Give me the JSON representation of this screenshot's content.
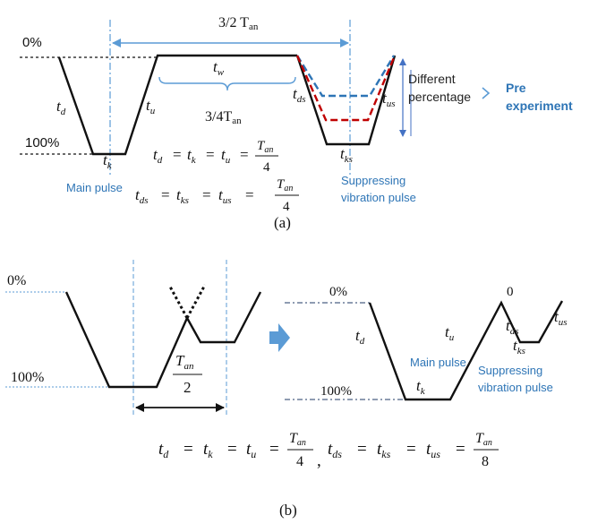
{
  "colors": {
    "black": "#111111",
    "blue_label": "#2e75b6",
    "arrow_blue": "#5b9bd5",
    "dash_blue": "#2e75b6",
    "dash_red": "#c00000",
    "thin_blue": "#4472c4"
  },
  "icons": {
    "pre_experiment_arrow": "chevron-right-icon",
    "transition_arrow": "block-right-arrow-icon"
  },
  "panel_a": {
    "caption": "(a)",
    "levels": {
      "zero": "0%",
      "hundred": "100%"
    },
    "span_top": "3/2 T",
    "span_top_sub": "an",
    "span_mid": "3/4T",
    "span_mid_sub": "an",
    "seg": {
      "td": {
        "t": "t",
        "s": "d"
      },
      "tk": {
        "t": "t",
        "s": "k"
      },
      "tu": {
        "t": "t",
        "s": "u"
      },
      "tw": {
        "t": "t",
        "s": "w"
      },
      "tds": {
        "t": "t",
        "s": "ds"
      },
      "tks": {
        "t": "t",
        "s": "ks"
      },
      "tus": {
        "t": "t",
        "s": "us"
      }
    },
    "different_line1": "Different",
    "different_line2": "percentage",
    "pre_line1": "Pre",
    "pre_line2": "experiment",
    "main_pulse": "Main pulse",
    "supp_line1": "Suppressing",
    "supp_line2": "vibration pulse",
    "eq1": {
      "lhs": "t",
      "lhs_sub": "d",
      "eq": "=",
      "t2": "t",
      "t2_sub": "k",
      "t3": "t",
      "t3_sub": "u",
      "num": "T",
      "num_sub": "an",
      "den": "4"
    },
    "eq2": {
      "lhs": "t",
      "lhs_sub": "ds",
      "eq": "=",
      "t2": "t",
      "t2_sub": "ks",
      "t3": "t",
      "t3_sub": "us",
      "num": "T",
      "num_sub": "an",
      "den": "4"
    }
  },
  "panel_b": {
    "caption": "(b)",
    "left": {
      "zero": "0%",
      "hundred": "100%",
      "frac_num": "T",
      "frac_num_sub": "an",
      "frac_den": "2"
    },
    "right": {
      "zero": "0%",
      "hundred": "100%",
      "peak_zero": "0",
      "seg": {
        "td": {
          "t": "t",
          "s": "d"
        },
        "tk": {
          "t": "t",
          "s": "k"
        },
        "tu": {
          "t": "t",
          "s": "u"
        },
        "tds": {
          "t": "t",
          "s": "ds"
        },
        "tks": {
          "t": "t",
          "s": "ks"
        },
        "tus": {
          "t": "t",
          "s": "us"
        }
      },
      "main_pulse": "Main pulse",
      "supp_line1": "Suppressing",
      "supp_line2": "vibration pulse"
    },
    "equation": {
      "a": "t",
      "a_sub": "d",
      "b": "t",
      "b_sub": "k",
      "c": "t",
      "c_sub": "u",
      "f1_num": "T",
      "f1_num_sub": "an",
      "f1_den": "4",
      "comma": ",",
      "d": "t",
      "d_sub": "ds",
      "e": "t",
      "e_sub": "ks",
      "f": "t",
      "f_sub": "us",
      "f2_num": "T",
      "f2_num_sub": "an",
      "f2_den": "8",
      "eq": "="
    }
  }
}
